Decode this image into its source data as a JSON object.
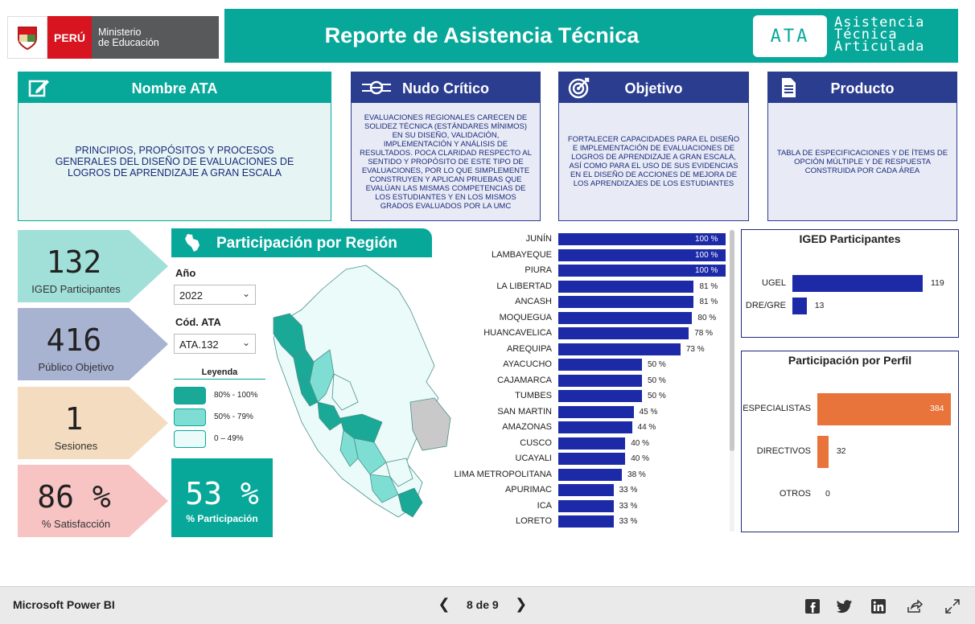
{
  "header": {
    "logo": {
      "country": "PERÚ",
      "ministry_line1": "Ministerio",
      "ministry_line2": "de Educación"
    },
    "title": "Reporte de Asistencia Técnica",
    "badge": "ATA",
    "badge_words": [
      "Asistencia",
      "Técnica",
      "Articulada"
    ]
  },
  "cards": [
    {
      "title": "Nombre ATA",
      "icon": "edit-icon",
      "text": "PRINCIPIOS, PROPÓSITOS Y PROCESOS GENERALES DEL DISEÑO DE EVALUACIONES DE LOGROS DE APRENDIZAJE A GRAN ESCALA"
    },
    {
      "title": "Nudo Crítico",
      "icon": "knot-icon",
      "text": "EVALUACIONES REGIONALES CARECEN DE SOLIDEZ TÉCNICA (ESTÁNDARES MÍNIMOS) EN SU DISEÑO, VALIDACIÓN, IMPLEMENTACIÓN Y ANÁLISIS DE RESULTADOS. POCA CLARIDAD RESPECTO AL SENTIDO Y PROPÓSITO DE ESTE TIPO DE EVALUACIONES, POR LO QUE SIMPLEMENTE CONSTRUYEN Y APLICAN PRUEBAS QUE EVALÚAN LAS MISMAS COMPETENCIAS DE LOS ESTUDIANTES Y EN LOS MISMOS GRADOS EVALUADOS POR LA UMC"
    },
    {
      "title": "Objetivo",
      "icon": "target-icon",
      "text": "FORTALECER CAPACIDADES PARA EL DISEÑO E IMPLEMENTACIÓN DE EVALUACIONES DE LOGROS DE APRENDIZAJE A GRAN ESCALA, ASÍ COMO PARA EL USO DE SUS EVIDENCIAS EN EL DISEÑO DE ACCIONES DE MEJORA DE LOS APRENDIZAJES DE LOS ESTUDIANTES"
    },
    {
      "title": "Producto",
      "icon": "document-icon",
      "text": "TABLA DE ESPECIFICACIONES Y DE ÍTEMS DE OPCIÓN MÚLTIPLE Y DE RESPUESTA CONSTRUIDA POR CADA ÁREA"
    }
  ],
  "kpis": [
    {
      "value": "132",
      "label": "IGED Participantes",
      "color": "#a1e0d9"
    },
    {
      "value": "416",
      "label": "Público Objetivo",
      "color": "#a8b3d2"
    },
    {
      "value": "1",
      "label": "Sesiones",
      "color": "#f4dcc0"
    },
    {
      "value": "86 %",
      "label": "% Satisfacción",
      "color": "#f8c3c3"
    }
  ],
  "region": {
    "title": "Participación por Región",
    "icon": "peru-map-icon",
    "year_label": "Año",
    "year_value": "2022",
    "code_label": "Cód. ATA",
    "code_value": "ATA.132",
    "legend_title": "Leyenda",
    "legend": [
      {
        "label": "80% - 100%",
        "color": "#1aa997"
      },
      {
        "label": "50% - 79%",
        "color": "#7fded3"
      },
      {
        "label": "0 – 49%",
        "color": "#eafbfa"
      }
    ],
    "participation_value": "53 %",
    "participation_label": "% Participación"
  },
  "chart_data": [
    {
      "type": "bar",
      "orientation": "horizontal",
      "categories": [
        "JUNÍN",
        "LAMBAYEQUE",
        "PIURA",
        "LA LIBERTAD",
        "ANCASH",
        "MOQUEGUA",
        "HUANCAVELICA",
        "AREQUIPA",
        "AYACUCHO",
        "CAJAMARCA",
        "TUMBES",
        "SAN MARTIN",
        "AMAZONAS",
        "CUSCO",
        "UCAYALI",
        "LIMA METROPOLITANA",
        "APURIMAC",
        "ICA",
        "LORETO"
      ],
      "values": [
        100,
        100,
        100,
        81,
        81,
        80,
        78,
        73,
        50,
        50,
        50,
        45,
        44,
        40,
        40,
        38,
        33,
        33,
        33
      ],
      "value_suffix": " %",
      "xlim": [
        0,
        100
      ],
      "color": "#1d2aa8"
    },
    {
      "type": "bar",
      "orientation": "horizontal",
      "title": "IGED Participantes",
      "categories": [
        "UGEL",
        "DRE/GRE"
      ],
      "values": [
        119,
        13
      ],
      "xlim": [
        0,
        119
      ],
      "color": "#1d2aa8"
    },
    {
      "type": "bar",
      "orientation": "horizontal",
      "title": "Participación por Perfil",
      "categories": [
        "ESPECIALISTAS",
        "DIRECTIVOS",
        "OTROS"
      ],
      "values": [
        384,
        32,
        0
      ],
      "xlim": [
        0,
        384
      ],
      "color": "#e8743b"
    }
  ],
  "footer": {
    "brand": "Microsoft Power BI",
    "page_indicator": "8 de 9",
    "icons": [
      "facebook-icon",
      "twitter-icon",
      "linkedin-icon",
      "share-icon",
      "expand-icon"
    ]
  }
}
